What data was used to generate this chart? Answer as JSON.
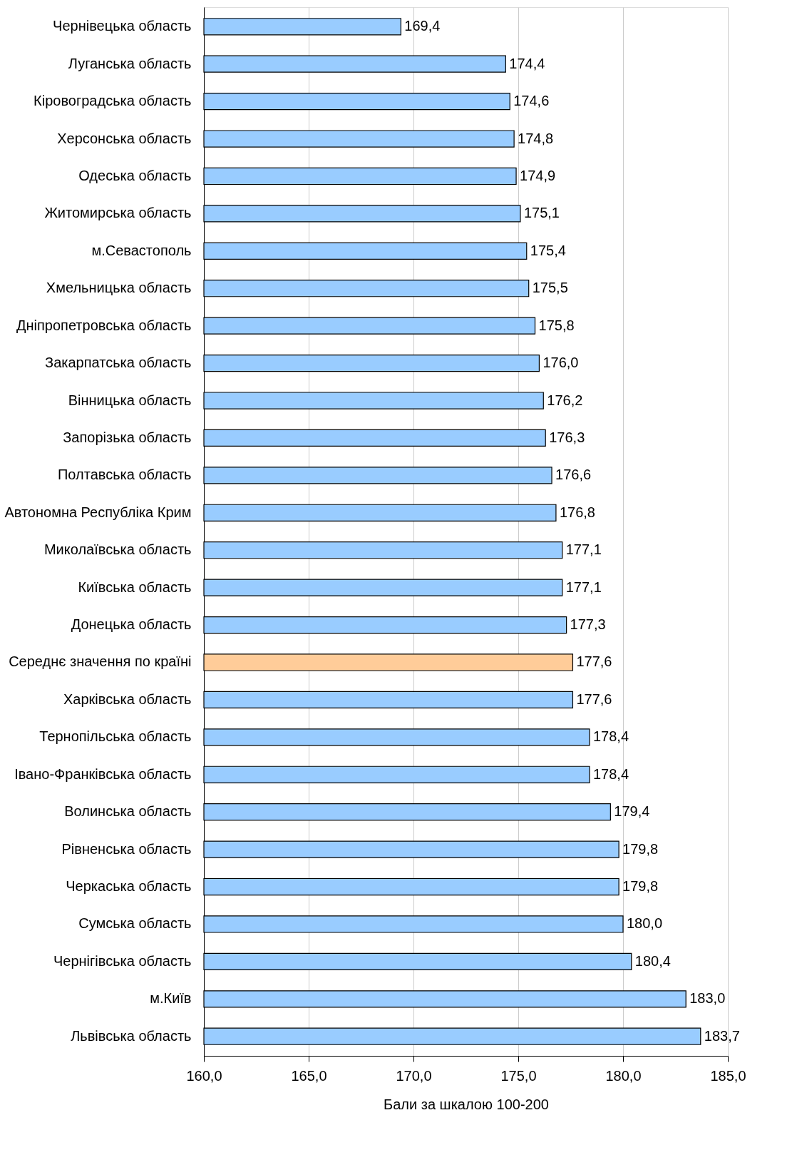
{
  "chart_data": {
    "type": "bar",
    "orientation": "horizontal",
    "xlabel": "Бали за шкалою 100-200",
    "categories": [
      "Чернівецька область",
      "Луганська область",
      "Кіровоградська область",
      "Херсонська область",
      "Одеська область",
      "Житомирська область",
      "м.Севастополь",
      "Хмельницька область",
      "Дніпропетровська область",
      "Закарпатська область",
      "Вінницька область",
      "Запорізька область",
      "Полтавська область",
      "Автономна Республіка Крим",
      "Миколаївська область",
      "Київська область",
      "Донецька область",
      "Середнє значення по країні",
      "Харківська область",
      "Тернопільська область",
      "Івано-Франківська область",
      "Волинська область",
      "Рівненська область",
      "Черкаська область",
      "Сумська область",
      "Чернігівська область",
      "м.Київ",
      "Львівська область"
    ],
    "values": [
      169.4,
      174.4,
      174.6,
      174.8,
      174.9,
      175.1,
      175.4,
      175.5,
      175.8,
      176.0,
      176.2,
      176.3,
      176.6,
      176.8,
      177.1,
      177.1,
      177.3,
      177.6,
      177.6,
      178.4,
      178.4,
      179.4,
      179.8,
      179.8,
      180.0,
      180.4,
      183.0,
      183.7
    ],
    "value_labels": [
      "169,4",
      "174,4",
      "174,6",
      "174,8",
      "174,9",
      "175,1",
      "175,4",
      "175,5",
      "175,8",
      "176,0",
      "176,2",
      "176,3",
      "176,6",
      "176,8",
      "177,1",
      "177,1",
      "177,3",
      "177,6",
      "177,6",
      "178,4",
      "178,4",
      "179,4",
      "179,8",
      "179,8",
      "180,0",
      "180,4",
      "183,0",
      "183,7"
    ],
    "colors": [
      "#99ccff",
      "#99ccff",
      "#99ccff",
      "#99ccff",
      "#99ccff",
      "#99ccff",
      "#99ccff",
      "#99ccff",
      "#99ccff",
      "#99ccff",
      "#99ccff",
      "#99ccff",
      "#99ccff",
      "#99ccff",
      "#99ccff",
      "#99ccff",
      "#99ccff",
      "#ffcc99",
      "#99ccff",
      "#99ccff",
      "#99ccff",
      "#99ccff",
      "#99ccff",
      "#99ccff",
      "#99ccff",
      "#99ccff",
      "#99ccff",
      "#99ccff"
    ],
    "xlim": [
      160,
      185
    ],
    "xticks": [
      {
        "value": 160,
        "label": "160,0"
      },
      {
        "value": 165,
        "label": "165,0"
      },
      {
        "value": 170,
        "label": "170,0"
      },
      {
        "value": 175,
        "label": "175,0"
      },
      {
        "value": 180,
        "label": "180,0"
      },
      {
        "value": 185,
        "label": "185,0"
      }
    ],
    "grid": "x"
  }
}
